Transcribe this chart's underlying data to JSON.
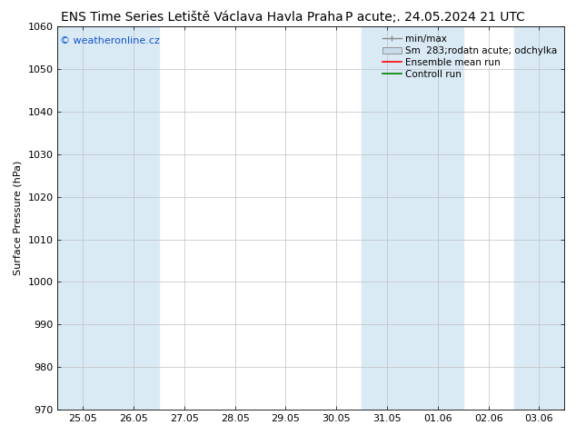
{
  "title": "ENS Time Series Letiště Václava Havla Praha",
  "subtitle": "P acute;. 24.05.2024 21 UTC",
  "ylabel": "Surface Pressure (hPa)",
  "ylim": [
    970,
    1060
  ],
  "yticks": [
    970,
    980,
    990,
    1000,
    1010,
    1020,
    1030,
    1040,
    1050,
    1060
  ],
  "x_labels": [
    "25.05",
    "26.05",
    "27.05",
    "28.05",
    "29.05",
    "30.05",
    "31.05",
    "01.06",
    "02.06",
    "03.06"
  ],
  "n_cols": 10,
  "shaded_cols": [
    0,
    1,
    6,
    7,
    9
  ],
  "legend_labels": [
    "min/max",
    "Sm  283;rodatn acute; odchylka",
    "Ensemble mean run",
    "Controll run"
  ],
  "watermark": "© weatheronline.cz",
  "background_color": "#ffffff",
  "shaded_color": "#daeaf5",
  "plot_bg": "#ffffff",
  "title_fontsize": 10,
  "subtitle_fontsize": 10,
  "axis_label_fontsize": 8,
  "tick_fontsize": 8,
  "legend_fontsize": 7.5
}
